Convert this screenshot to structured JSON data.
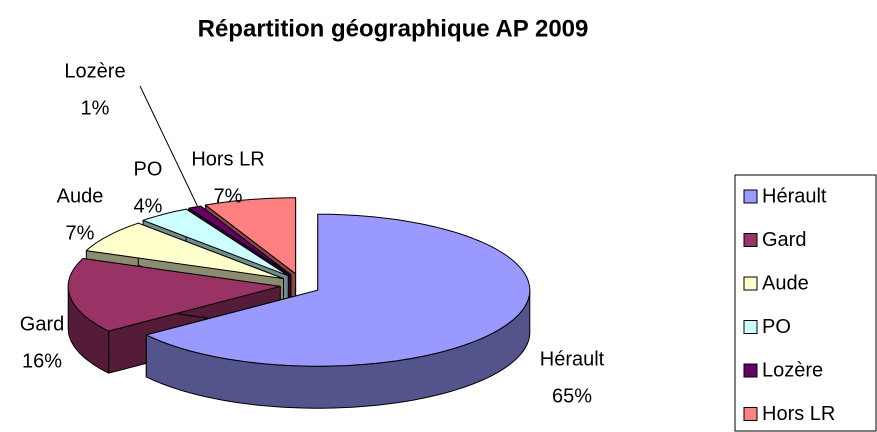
{
  "chart_data": {
    "type": "pie3d",
    "title": "Répartition géographique AP 2009",
    "categories": [
      "Hérault",
      "Gard",
      "Aude",
      "PO",
      "Lozère",
      "Hors LR"
    ],
    "values": [
      65,
      16,
      7,
      4,
      1,
      7
    ],
    "value_labels": [
      "65%",
      "16%",
      "7%",
      "4%",
      "1%",
      "7%"
    ],
    "colors": [
      "#9999ff",
      "#993366",
      "#ffffcc",
      "#ccffff",
      "#660066",
      "#ff8080"
    ],
    "legend": "right"
  }
}
